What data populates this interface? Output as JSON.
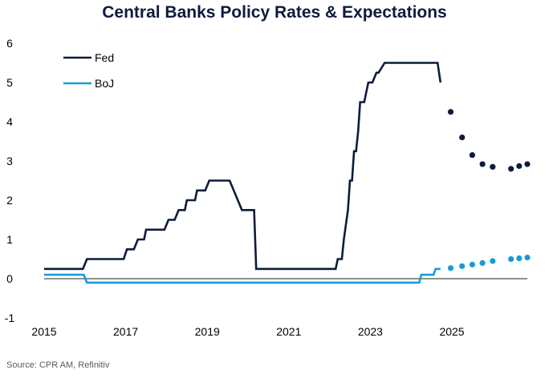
{
  "title": "Central Banks Policy Rates & Expectations",
  "source": "Source: CPR AM, Refinitiv",
  "chart_data": {
    "type": "line",
    "title": "Central Banks Policy Rates & Expectations",
    "xlabel": "",
    "ylabel": "",
    "xlim": [
      2015.0,
      2026.85
    ],
    "ylim": [
      -1,
      6
    ],
    "x_ticks": [
      2015,
      2017,
      2019,
      2021,
      2023,
      2025
    ],
    "x_tick_labels": [
      "2015",
      "2017",
      "2019",
      "2021",
      "2023",
      "2025"
    ],
    "y_ticks": [
      -1,
      0,
      1,
      2,
      3,
      4,
      5,
      6
    ],
    "y_tick_labels": [
      "-1",
      "0",
      "1",
      "2",
      "3",
      "4",
      "5",
      "6"
    ],
    "zero_line": true,
    "grid": false,
    "legend_position": "top-left",
    "series": [
      {
        "name": "Fed",
        "color": "#0d1b3d",
        "style": "line",
        "x": [
          2015.0,
          2015.95,
          2016.05,
          2016.95,
          2017.03,
          2017.2,
          2017.3,
          2017.45,
          2017.5,
          2017.95,
          2018.05,
          2018.2,
          2018.3,
          2018.45,
          2018.5,
          2018.7,
          2018.75,
          2018.95,
          2019.05,
          2019.55,
          2019.65,
          2019.75,
          2019.85,
          2020.15,
          2020.2,
          2022.15,
          2022.2,
          2022.3,
          2022.35,
          2022.45,
          2022.5,
          2022.55,
          2022.6,
          2022.65,
          2022.7,
          2022.75,
          2022.85,
          2022.9,
          2022.95,
          2023.05,
          2023.15,
          2023.2,
          2023.35,
          2023.45,
          2023.55,
          2024.65,
          2024.72
        ],
        "y": [
          0.25,
          0.25,
          0.5,
          0.5,
          0.75,
          0.75,
          1.0,
          1.0,
          1.25,
          1.25,
          1.5,
          1.5,
          1.75,
          1.75,
          2.0,
          2.0,
          2.25,
          2.25,
          2.5,
          2.5,
          2.25,
          2.0,
          1.75,
          1.75,
          0.25,
          0.25,
          0.5,
          0.5,
          1.0,
          1.75,
          2.5,
          2.5,
          3.25,
          3.25,
          3.75,
          4.5,
          4.5,
          4.75,
          5.0,
          5.0,
          5.25,
          5.25,
          5.5,
          5.5,
          5.5,
          5.5,
          5.0
        ]
      },
      {
        "name": "BoJ",
        "color": "#1a9ad6",
        "style": "line",
        "x": [
          2015.0,
          2015.97,
          2016.05,
          2024.2,
          2024.25,
          2024.55,
          2024.6,
          2024.72
        ],
        "y": [
          0.1,
          0.1,
          -0.1,
          -0.1,
          0.1,
          0.1,
          0.25,
          0.25
        ]
      },
      {
        "name": "",
        "color": "#0d1b3d",
        "style": "dots",
        "x": [
          2024.97,
          2025.25,
          2025.5,
          2025.75,
          2026.0,
          2026.45,
          2026.65,
          2026.85
        ],
        "y": [
          4.25,
          3.6,
          3.15,
          2.92,
          2.85,
          2.8,
          2.87,
          2.92
        ]
      },
      {
        "name": "",
        "color": "#1a9ad6",
        "style": "dots",
        "x": [
          2024.97,
          2025.25,
          2025.5,
          2025.75,
          2026.0,
          2026.45,
          2026.65,
          2026.85
        ],
        "y": [
          0.27,
          0.32,
          0.36,
          0.4,
          0.45,
          0.5,
          0.52,
          0.54
        ]
      }
    ]
  }
}
